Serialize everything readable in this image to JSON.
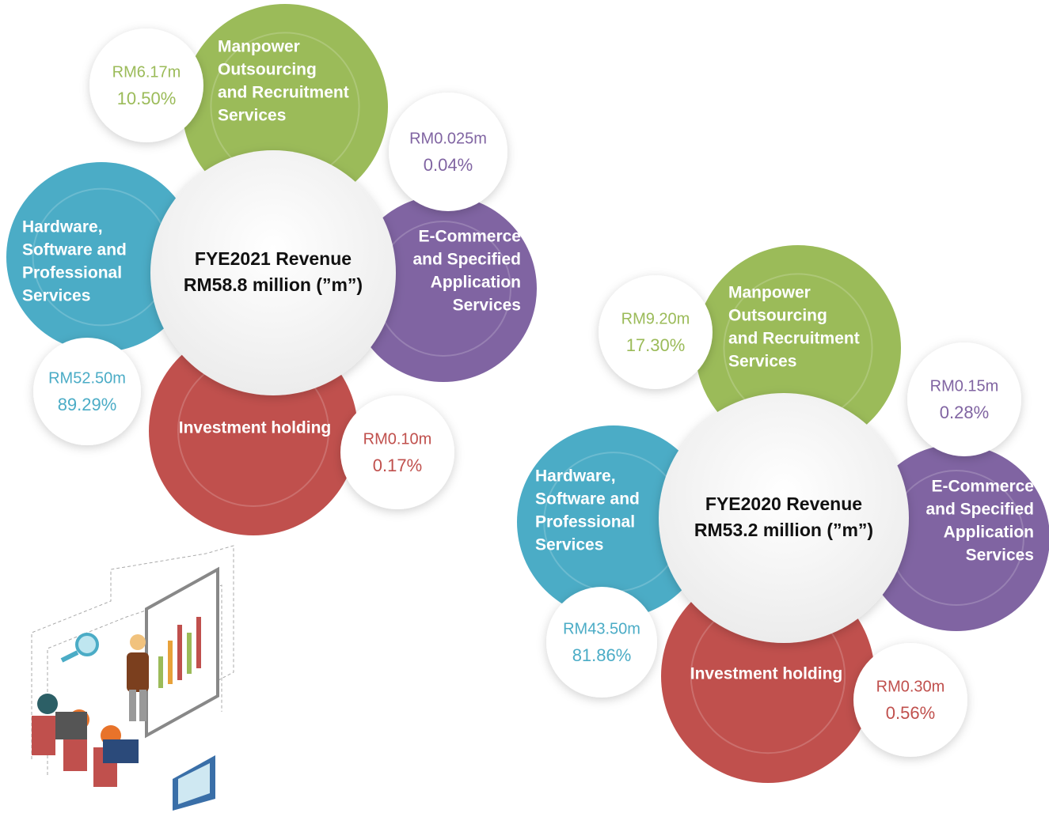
{
  "charts": [
    {
      "title": [
        "FYE2021 Revenue",
        "RM58.8 million (”m”)"
      ],
      "segments": [
        {
          "label": [
            "Manpower",
            "Outsourcing",
            "and Recruitment",
            "Services"
          ],
          "amount": "RM6.17m",
          "share": "10.50%"
        },
        {
          "label": [
            "E-Commerce",
            "and Specified",
            "Application",
            "Services"
          ],
          "amount": "RM0.025m",
          "share": "0.04%"
        },
        {
          "label": [
            "Investment holding"
          ],
          "amount": "RM0.10m",
          "share": "0.17%"
        },
        {
          "label": [
            "Hardware,",
            "Software and",
            "Professional",
            "Services"
          ],
          "amount": "RM52.50m",
          "share": "89.29%"
        }
      ]
    },
    {
      "title": [
        "FYE2020 Revenue",
        "RM53.2 million (”m”)"
      ],
      "segments": [
        {
          "label": [
            "Manpower",
            "Outsourcing",
            "and Recruitment",
            "Services"
          ],
          "amount": "RM9.20m",
          "share": "17.30%"
        },
        {
          "label": [
            "E-Commerce",
            "and Specified",
            "Application",
            "Services"
          ],
          "amount": "RM0.15m",
          "share": "0.28%"
        },
        {
          "label": [
            "Investment holding"
          ],
          "amount": "RM0.30m",
          "share": "0.56%"
        },
        {
          "label": [
            "Hardware,",
            "Software and",
            "Professional",
            "Services"
          ],
          "amount": "RM43.50m",
          "share": "81.86%"
        }
      ]
    }
  ]
}
